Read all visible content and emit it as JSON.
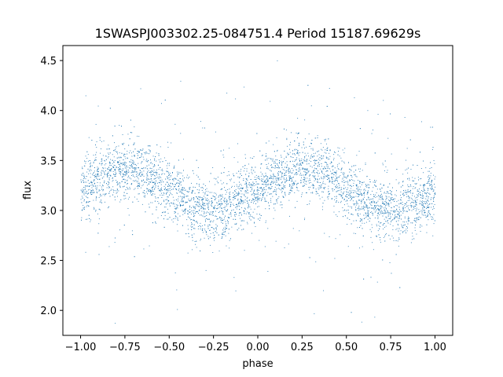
{
  "chart_data": {
    "type": "scatter",
    "title": "1SWASPJ003302.25-084751.4 Period 15187.69629s",
    "xlabel": "phase",
    "ylabel": "flux",
    "xlim": [
      -1.1,
      1.1
    ],
    "ylim": [
      1.75,
      4.65
    ],
    "grid": false,
    "x_ticks": [
      -1.0,
      -0.75,
      -0.5,
      -0.25,
      0.0,
      0.25,
      0.5,
      0.75,
      1.0
    ],
    "x_tick_labels": [
      "−1.00",
      "−0.75",
      "−0.50",
      "−0.25",
      "0.00",
      "0.25",
      "0.50",
      "0.75",
      "1.00"
    ],
    "y_ticks": [
      2.0,
      2.5,
      3.0,
      3.5,
      4.0,
      4.5
    ],
    "y_tick_labels": [
      "2.0",
      "2.5",
      "3.0",
      "3.5",
      "4.0",
      "4.5"
    ],
    "marker_color": "#1f77b4",
    "series": [
      {
        "x": [
          -1.0,
          -0.95,
          -0.9,
          -0.85,
          -0.8,
          -0.75,
          -0.7,
          -0.65,
          -0.6,
          -0.55,
          -0.5,
          -0.45,
          -0.4,
          -0.35,
          -0.3,
          -0.25,
          -0.2,
          -0.15,
          -0.1,
          -0.05,
          0.0,
          0.05,
          0.1,
          0.15,
          0.2,
          0.25,
          0.3,
          0.35,
          0.4,
          0.45,
          0.5,
          0.55,
          0.6,
          0.65,
          0.7,
          0.75,
          0.8,
          0.85,
          0.9,
          0.95,
          1.0
        ],
        "y": [
          3.2,
          3.25,
          3.3,
          3.35,
          3.4,
          3.42,
          3.42,
          3.38,
          3.33,
          3.28,
          3.22,
          3.15,
          3.08,
          3.02,
          2.99,
          3.0,
          3.03,
          3.07,
          3.12,
          3.18,
          3.22,
          3.27,
          3.31,
          3.35,
          3.39,
          3.41,
          3.42,
          3.39,
          3.35,
          3.3,
          3.24,
          3.16,
          3.1,
          3.05,
          3.02,
          3.02,
          3.03,
          3.05,
          3.08,
          3.12,
          3.15
        ],
        "scatter_sd": 0.15
      }
    ]
  }
}
